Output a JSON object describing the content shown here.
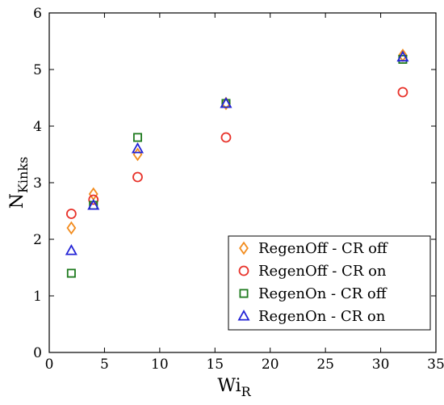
{
  "chart_data": {
    "type": "scatter",
    "title": "",
    "xlabel": {
      "main": "Wi",
      "sub": "R"
    },
    "ylabel": {
      "main": "N",
      "sub": "Kinks"
    },
    "xlim": [
      0,
      35
    ],
    "ylim": [
      0,
      6
    ],
    "xticks": [
      0,
      5,
      10,
      15,
      20,
      25,
      30,
      35
    ],
    "yticks": [
      0,
      1,
      2,
      3,
      4,
      5,
      6
    ],
    "grid": false,
    "legend_position": "bottom-right",
    "series": [
      {
        "name": "RegenOff - CR off",
        "marker": "diamond",
        "color": "#F28C1E",
        "x": [
          2,
          4,
          8,
          16,
          32
        ],
        "y": [
          2.2,
          2.8,
          3.5,
          4.4,
          5.25
        ]
      },
      {
        "name": "RegenOff - CR on",
        "marker": "circle",
        "color": "#E8322A",
        "x": [
          2,
          4,
          8,
          16,
          32
        ],
        "y": [
          2.45,
          2.7,
          3.1,
          3.8,
          4.6
        ]
      },
      {
        "name": "RegenOn - CR off",
        "marker": "square",
        "color": "#1E7A1E",
        "x": [
          2,
          4,
          8,
          16,
          32
        ],
        "y": [
          1.4,
          2.6,
          3.8,
          4.4,
          5.18
        ]
      },
      {
        "name": "RegenOn - CR on",
        "marker": "triangle",
        "color": "#2323D6",
        "x": [
          2,
          4,
          8,
          16,
          32
        ],
        "y": [
          1.8,
          2.6,
          3.6,
          4.4,
          5.22
        ]
      }
    ]
  }
}
